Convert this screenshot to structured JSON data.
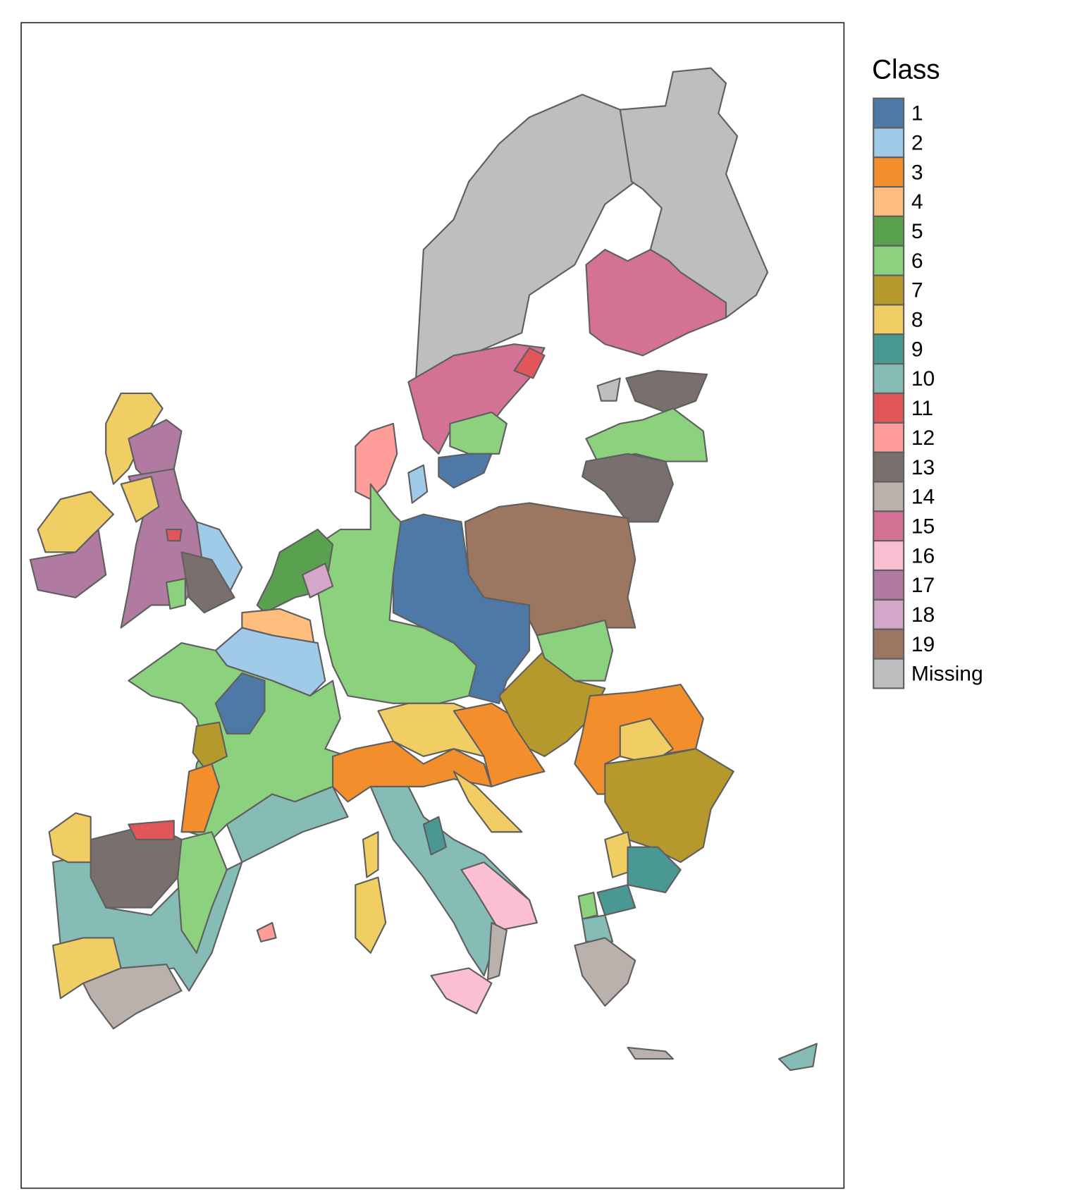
{
  "legend": {
    "title": "Class",
    "items": [
      {
        "label": "1",
        "color": "#4e79a7"
      },
      {
        "label": "2",
        "color": "#a0cbe8"
      },
      {
        "label": "3",
        "color": "#f28e2b"
      },
      {
        "label": "4",
        "color": "#ffbe7d"
      },
      {
        "label": "5",
        "color": "#59a14f"
      },
      {
        "label": "6",
        "color": "#8cd17d"
      },
      {
        "label": "7",
        "color": "#b6992d"
      },
      {
        "label": "8",
        "color": "#f1ce63"
      },
      {
        "label": "9",
        "color": "#499894"
      },
      {
        "label": "10",
        "color": "#86bcb6"
      },
      {
        "label": "11",
        "color": "#e15759"
      },
      {
        "label": "12",
        "color": "#ff9d9a"
      },
      {
        "label": "13",
        "color": "#79706e"
      },
      {
        "label": "14",
        "color": "#bab0ac"
      },
      {
        "label": "15",
        "color": "#d37295"
      },
      {
        "label": "16",
        "color": "#fabfd2"
      },
      {
        "label": "17",
        "color": "#b07aa1"
      },
      {
        "label": "18",
        "color": "#d4a6c8"
      },
      {
        "label": "19",
        "color": "#9d7660"
      },
      {
        "label": "Missing",
        "color": "#bebebe"
      }
    ]
  }
}
